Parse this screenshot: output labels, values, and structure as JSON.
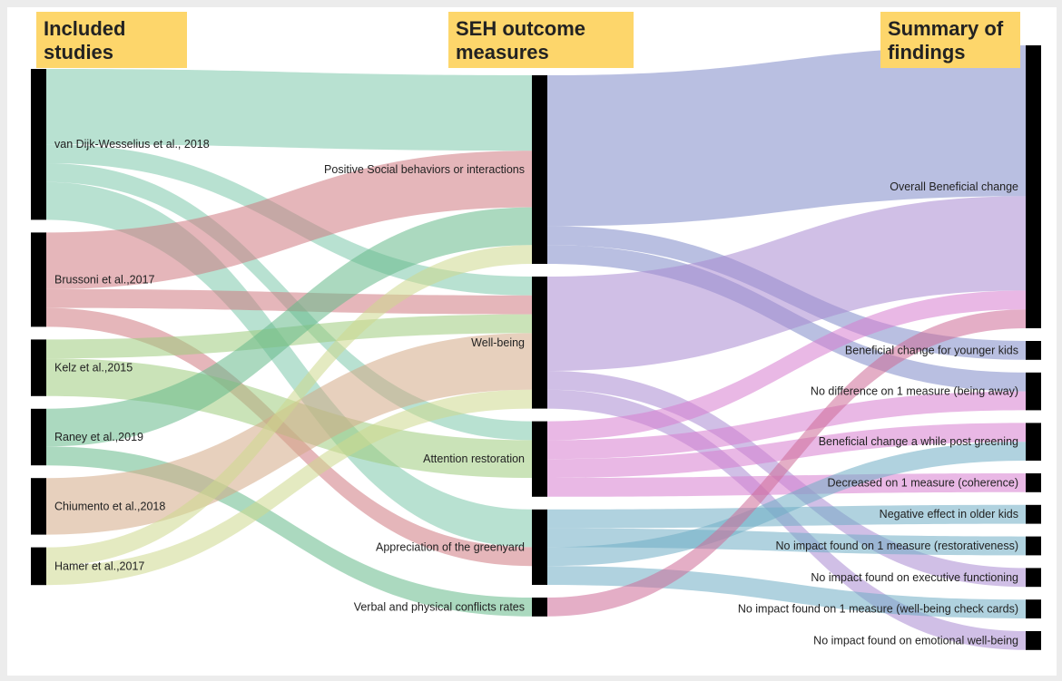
{
  "headers": {
    "studies": [
      "Included",
      "studies"
    ],
    "measures": [
      "SEH outcome",
      "measures"
    ],
    "findings": [
      "Summary of",
      "findings"
    ]
  },
  "header_color": "#fdd66b",
  "studies": [
    {
      "key": "vandijk",
      "label": "van Dijk-Wesselius et al., 2018",
      "color": "#7dc9ac"
    },
    {
      "key": "brussoni",
      "label": "Brussoni et al.,2017",
      "color": "#cf7a82"
    },
    {
      "key": "kelz",
      "label": "Kelz et al.,2015",
      "color": "#9ecc7e"
    },
    {
      "key": "raney",
      "label": "Raney et al.,2019",
      "color": "#66b98a"
    },
    {
      "key": "chiumento",
      "label": "Chiumento et al.,2018",
      "color": "#d4a987"
    },
    {
      "key": "hamer",
      "label": "Hamer et al.,2017",
      "color": "#cdd98e"
    }
  ],
  "measures": [
    {
      "key": "psb",
      "label": "Positive Social behaviors or interactions"
    },
    {
      "key": "wb",
      "label": "Well-being"
    },
    {
      "key": "ar",
      "label": "Attention restoration"
    },
    {
      "key": "ag",
      "label": "Appreciation of the greenyard"
    },
    {
      "key": "vp",
      "label": "Verbal and physical conflicts rates"
    }
  ],
  "findings": [
    {
      "key": "obc",
      "label": "Overall Beneficial change"
    },
    {
      "key": "byk",
      "label": "Beneficial change for younger kids"
    },
    {
      "key": "nd1",
      "label": "No difference on 1 measure (being away)"
    },
    {
      "key": "bcp",
      "label": "Beneficial change a while post greening"
    },
    {
      "key": "dec",
      "label": "Decreased on 1 measure (coherence)"
    },
    {
      "key": "neg",
      "label": "Negative effect in older kids"
    },
    {
      "key": "nir",
      "label": "No impact found on 1 measure (restorativeness)"
    },
    {
      "key": "nie",
      "label": "No impact found on executive functioning"
    },
    {
      "key": "niw",
      "label": "No impact found on 1 measure (well-being check cards)"
    },
    {
      "key": "nem",
      "label": "No impact found on emotional well-being"
    }
  ],
  "measure_colors": {
    "psb": "#7f8bc8",
    "wb": "#a98ad1",
    "ar": "#d77ecf",
    "ag": "#6fadc4",
    "vp": "#cd6c97"
  },
  "links_study_to_measure": [
    [
      "vandijk",
      "psb",
      4
    ],
    [
      "vandijk",
      "wb",
      1
    ],
    [
      "vandijk",
      "ar",
      1
    ],
    [
      "vandijk",
      "ag",
      2
    ],
    [
      "brussoni",
      "psb",
      3
    ],
    [
      "brussoni",
      "wb",
      1
    ],
    [
      "brussoni",
      "ag",
      1
    ],
    [
      "kelz",
      "wb",
      1
    ],
    [
      "kelz",
      "ar",
      2
    ],
    [
      "raney",
      "psb",
      2
    ],
    [
      "raney",
      "vp",
      1
    ],
    [
      "chiumento",
      "wb",
      3
    ],
    [
      "hamer",
      "psb",
      1
    ],
    [
      "hamer",
      "wb",
      1
    ]
  ],
  "links_measure_to_finding": [
    [
      "psb",
      "obc",
      8
    ],
    [
      "psb",
      "byk",
      1
    ],
    [
      "psb",
      "nd1",
      1
    ],
    [
      "wb",
      "obc",
      5
    ],
    [
      "wb",
      "nie",
      1
    ],
    [
      "wb",
      "nem",
      1
    ],
    [
      "ar",
      "obc",
      1
    ],
    [
      "ar",
      "nd1",
      1
    ],
    [
      "ar",
      "bcp",
      1
    ],
    [
      "ar",
      "dec",
      1
    ],
    [
      "ag",
      "neg",
      1
    ],
    [
      "ag",
      "nir",
      1
    ],
    [
      "ag",
      "bcp",
      1
    ],
    [
      "ag",
      "niw",
      1
    ],
    [
      "vp",
      "obc",
      1
    ]
  ]
}
